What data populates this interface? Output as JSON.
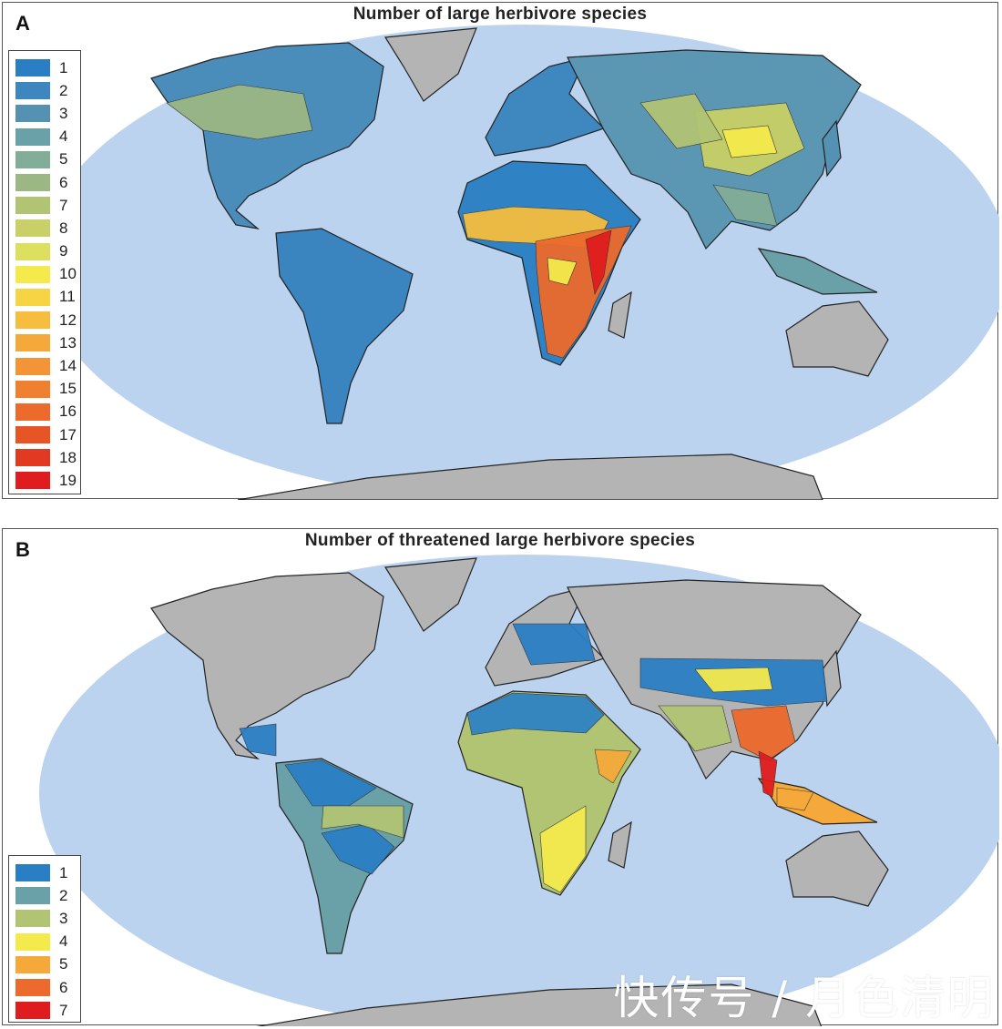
{
  "panels": [
    {
      "letter": "A",
      "title": "Number of large herbivore species",
      "legend": [
        {
          "label": "1",
          "color": "#2a7fc4"
        },
        {
          "label": "2",
          "color": "#3d86bf"
        },
        {
          "label": "3",
          "color": "#5591b3"
        },
        {
          "label": "4",
          "color": "#6aa0a8"
        },
        {
          "label": "5",
          "color": "#82ad98"
        },
        {
          "label": "6",
          "color": "#9bb784"
        },
        {
          "label": "7",
          "color": "#b1c474"
        },
        {
          "label": "8",
          "color": "#c8d067"
        },
        {
          "label": "9",
          "color": "#dde05e"
        },
        {
          "label": "10",
          "color": "#f4ea4c"
        },
        {
          "label": "11",
          "color": "#f7d444"
        },
        {
          "label": "12",
          "color": "#f6bd3e"
        },
        {
          "label": "13",
          "color": "#f5a93a"
        },
        {
          "label": "14",
          "color": "#f39436"
        },
        {
          "label": "15",
          "color": "#f08030"
        },
        {
          "label": "16",
          "color": "#ec6a2c"
        },
        {
          "label": "17",
          "color": "#e75426"
        },
        {
          "label": "18",
          "color": "#e23a22"
        },
        {
          "label": "19",
          "color": "#df1c1e"
        }
      ]
    },
    {
      "letter": "B",
      "title": "Number of threatened large herbivore species",
      "legend": [
        {
          "label": "1",
          "color": "#2a7fc4"
        },
        {
          "label": "2",
          "color": "#6aa0a8"
        },
        {
          "label": "3",
          "color": "#b1c474"
        },
        {
          "label": "4",
          "color": "#f4ea4c"
        },
        {
          "label": "5",
          "color": "#f5a93a"
        },
        {
          "label": "6",
          "color": "#ec6a2c"
        },
        {
          "label": "7",
          "color": "#df1c1e"
        }
      ]
    }
  ],
  "colors": {
    "ocean": "#bcd3ef",
    "land_no_data": "#b4b4b4",
    "border": "#222222"
  },
  "watermark": "快传号 / 月色清明"
}
